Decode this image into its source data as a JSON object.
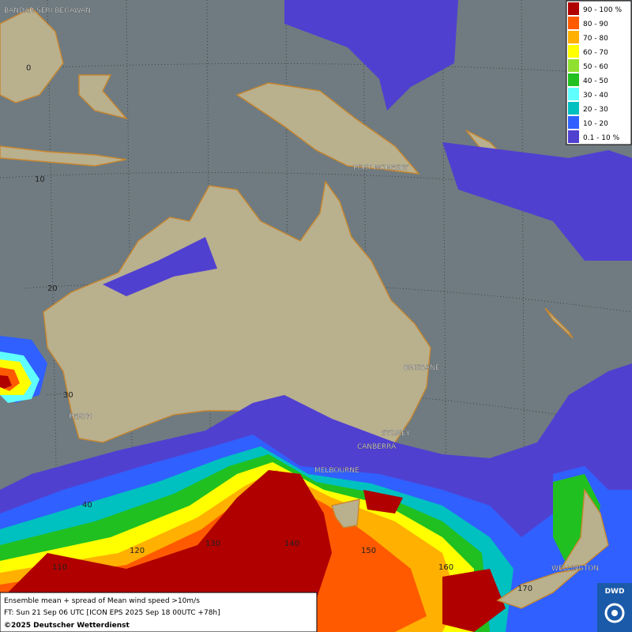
{
  "map": {
    "cities": [
      {
        "label": "BANDAR SERI BEGAWAN"
      },
      {
        "label": "PORT MORESBY"
      },
      {
        "label": "BRISBANE"
      },
      {
        "label": "PERTH"
      },
      {
        "label": "SYDNEY"
      },
      {
        "label": "CANBERRA"
      },
      {
        "label": "MELBOURNE"
      },
      {
        "label": "WELLINGTON"
      }
    ],
    "lat_labels": [
      "0",
      "10",
      "20",
      "30",
      "40"
    ],
    "lon_labels": [
      "110",
      "120",
      "130",
      "140",
      "150",
      "160",
      "170"
    ]
  },
  "legend": {
    "entries": [
      {
        "label": "90 - 100 %",
        "color": "#b00000"
      },
      {
        "label": "80 - 90",
        "color": "#ff5a00"
      },
      {
        "label": "70 - 80",
        "color": "#ffb000"
      },
      {
        "label": "60 - 70",
        "color": "#ffff00"
      },
      {
        "label": "50 - 60",
        "color": "#90e030"
      },
      {
        "label": "40 - 50",
        "color": "#20c020"
      },
      {
        "label": "30 - 40",
        "color": "#60ffff"
      },
      {
        "label": "20 - 30",
        "color": "#00c0c0"
      },
      {
        "label": "10 - 20",
        "color": "#3060ff"
      },
      {
        "label": "0.1 - 10 %",
        "color": "#5040d0"
      }
    ]
  },
  "footer": {
    "lines": [
      "Ensemble mean + spread of Mean wind speed >10m/s",
      "FT: Sun 21 Sep 06 UTC [ICON EPS 2025 Sep 18 00UTC +78h]",
      "©2025 Deutscher Wetterdienst"
    ]
  },
  "logo": "DWD"
}
